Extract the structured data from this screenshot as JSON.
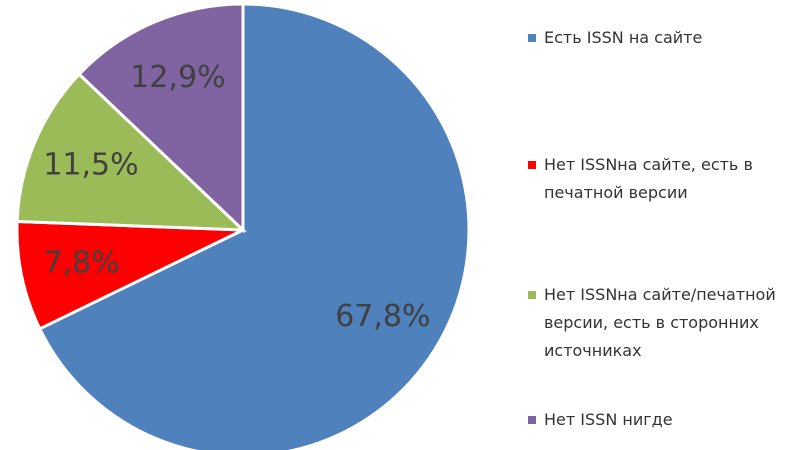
{
  "chart_data": {
    "type": "pie",
    "categories": [
      "Есть ISSN на сайте",
      "Нет ISSNна сайте, есть в печатной версии",
      "Нет ISSNна сайте/печатной версии, есть в сторонних источниках",
      "Нет ISSN нигде"
    ],
    "values": [
      67.8,
      7.8,
      11.5,
      12.9
    ],
    "value_labels": [
      "67,8%",
      "7,8%",
      "11,5%",
      "12,9%"
    ],
    "colors": [
      "#4f81bd",
      "#ff0000",
      "#9bbb59",
      "#8064a2"
    ],
    "legend": "right"
  }
}
